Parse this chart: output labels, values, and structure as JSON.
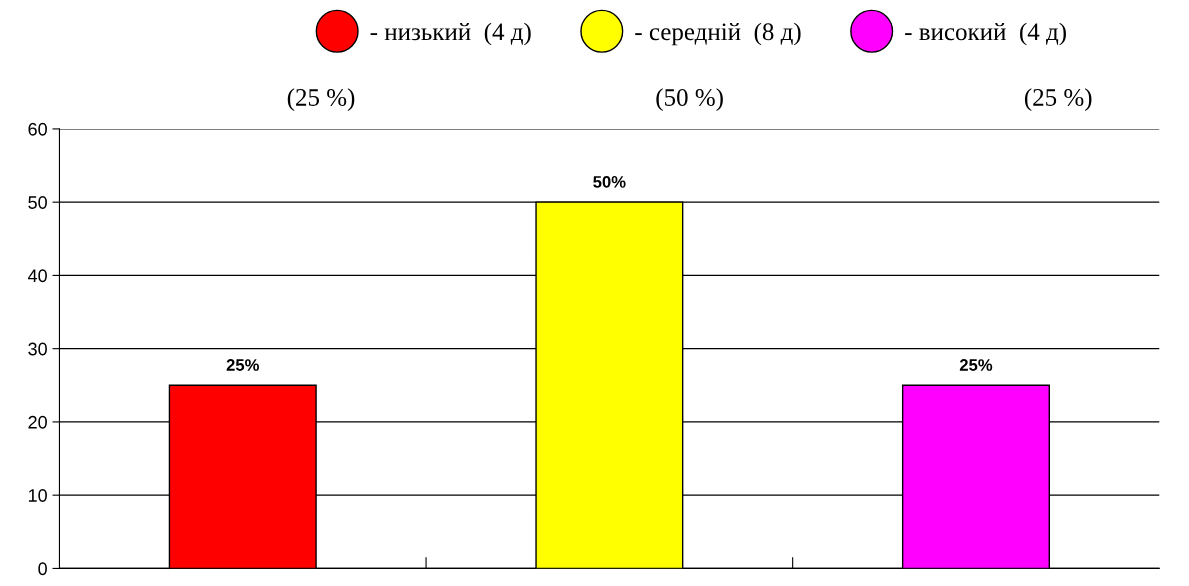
{
  "chart_data": {
    "type": "bar",
    "categories": [
      null,
      null,
      null
    ],
    "series": [
      {
        "name": "- низький  (4 д)",
        "color": "#ff0000",
        "values": [
          25,
          null,
          null
        ],
        "value_labels": [
          "25%",
          null,
          null
        ]
      },
      {
        "name": "- середній  (8 д)",
        "color": "#ffff00",
        "values": [
          null,
          50,
          null
        ],
        "value_labels": [
          null,
          "50%",
          null
        ]
      },
      {
        "name": "- високий  (4 д)",
        "color": "#ff00ff",
        "values": [
          null,
          null,
          25
        ],
        "value_labels": [
          null,
          null,
          "25%"
        ]
      }
    ],
    "annotations": [
      "(25 %)",
      "(50 %)",
      "(25 %)"
    ],
    "ylim": [
      0,
      60
    ],
    "yticks": [
      0,
      10,
      20,
      30,
      40,
      50,
      60
    ],
    "grid": "y",
    "legend": "top",
    "marker": "circle",
    "tick_labels": "y"
  }
}
